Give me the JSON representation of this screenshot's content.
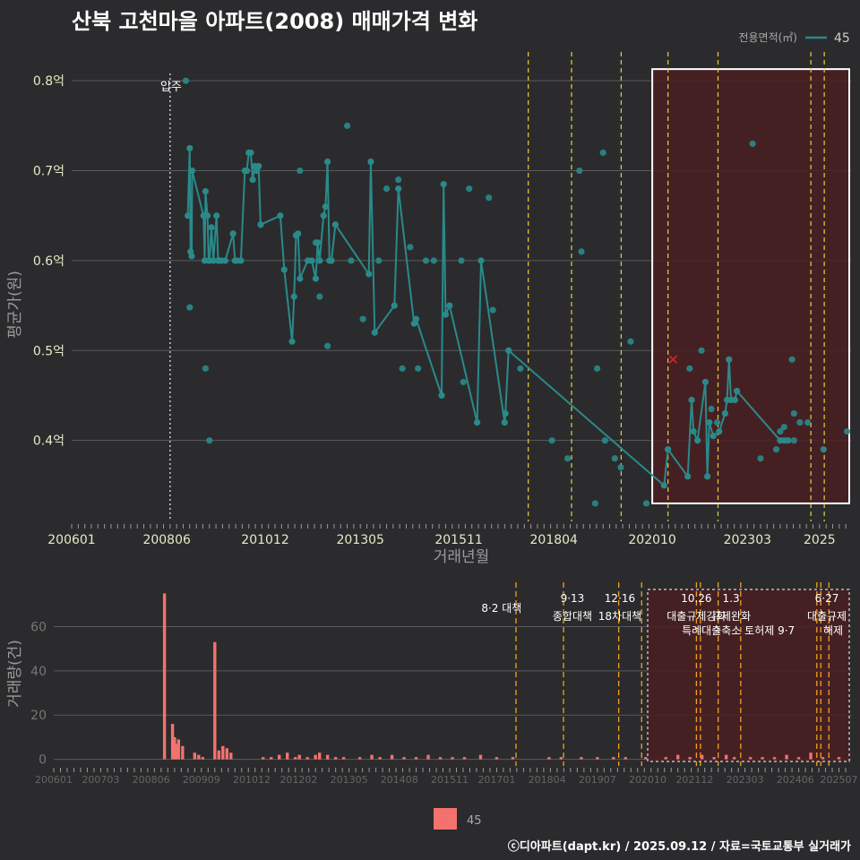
{
  "title": "산북 고천마을 아파트(2008) 매매가격 변화",
  "caption": "ⓒ디아파트(dapt.kr) / 2025.09.12 / 자료=국토교통부 실거래가",
  "colors": {
    "line": "#2a8a8a",
    "bar": "#f4726e",
    "policy": "#e6d23a",
    "policy_bottom": "#f2a11f",
    "highlight": "#4a1f22",
    "marker": "#d62728"
  },
  "chart_data": [
    {
      "type": "line",
      "xlabel": "거래년월",
      "ylabel": "평균가(원)",
      "legend": {
        "title": "전용면적(㎡)",
        "entries": [
          "45"
        ],
        "position": "top-right"
      },
      "x_ticks": [
        "200601",
        "200806",
        "201012",
        "201305",
        "201511",
        "201804",
        "202010",
        "202303",
        "2025"
      ],
      "x_range": [
        2006.0,
        2025.8
      ],
      "y_ticks": [
        "0.4억",
        "0.5억",
        "0.6억",
        "0.7억",
        "0.8억"
      ],
      "y_tick_values": [
        0.4,
        0.5,
        0.6,
        0.7,
        0.8
      ],
      "y_range": [
        0.31,
        0.85
      ],
      "move_in_label": "입주",
      "move_in_x": 2008.5,
      "policy_x": [
        2017.6,
        2018.7,
        2019.96,
        2021.15,
        2022.42,
        2024.78,
        2025.12
      ],
      "highlight_x": [
        2020.75,
        2025.8
      ],
      "series": [
        {
          "name": "45",
          "points": [
            [
              2008.95,
              0.65
            ],
            [
              2009.0,
              0.725
            ],
            [
              2009.02,
              0.61
            ],
            [
              2009.05,
              0.605
            ],
            [
              2009.06,
              0.7
            ],
            [
              2009.35,
              0.65
            ],
            [
              2009.38,
              0.6
            ],
            [
              2009.4,
              0.677
            ],
            [
              2009.45,
              0.65
            ],
            [
              2009.48,
              0.6
            ],
            [
              2009.5,
              0.6
            ],
            [
              2009.55,
              0.637
            ],
            [
              2009.6,
              0.6
            ],
            [
              2009.68,
              0.65
            ],
            [
              2009.72,
              0.6
            ],
            [
              2009.75,
              0.6
            ],
            [
              2009.8,
              0.6
            ],
            [
              2009.9,
              0.6
            ],
            [
              2010.1,
              0.63
            ],
            [
              2010.15,
              0.6
            ],
            [
              2010.2,
              0.6
            ],
            [
              2010.3,
              0.6
            ],
            [
              2010.4,
              0.7
            ],
            [
              2010.45,
              0.7
            ],
            [
              2010.5,
              0.72
            ],
            [
              2010.55,
              0.72
            ],
            [
              2010.6,
              0.69
            ],
            [
              2010.65,
              0.705
            ],
            [
              2010.7,
              0.7
            ],
            [
              2010.75,
              0.705
            ],
            [
              2010.8,
              0.64
            ],
            [
              2011.3,
              0.65
            ],
            [
              2011.4,
              0.59
            ],
            [
              2011.6,
              0.51
            ],
            [
              2011.65,
              0.56
            ],
            [
              2011.7,
              0.628
            ],
            [
              2011.75,
              0.63
            ],
            [
              2011.8,
              0.58
            ],
            [
              2012.0,
              0.6
            ],
            [
              2012.1,
              0.6
            ],
            [
              2012.2,
              0.58
            ],
            [
              2012.25,
              0.62
            ],
            [
              2012.3,
              0.6
            ],
            [
              2012.4,
              0.65
            ],
            [
              2012.45,
              0.66
            ],
            [
              2012.5,
              0.71
            ],
            [
              2012.55,
              0.6
            ],
            [
              2012.6,
              0.6
            ],
            [
              2012.7,
              0.64
            ],
            [
              2013.55,
              0.585
            ],
            [
              2013.6,
              0.71
            ],
            [
              2013.7,
              0.52
            ],
            [
              2014.2,
              0.55
            ],
            [
              2014.3,
              0.68
            ],
            [
              2014.7,
              0.53
            ],
            [
              2014.75,
              0.535
            ],
            [
              2015.4,
              0.45
            ],
            [
              2015.45,
              0.685
            ],
            [
              2015.5,
              0.54
            ],
            [
              2015.6,
              0.55
            ],
            [
              2016.3,
              0.42
            ],
            [
              2016.4,
              0.6
            ],
            [
              2017.0,
              0.42
            ],
            [
              2017.02,
              0.43
            ],
            [
              2017.1,
              0.5
            ],
            [
              2021.05,
              0.35
            ],
            [
              2021.15,
              0.39
            ],
            [
              2021.65,
              0.36
            ],
            [
              2021.75,
              0.445
            ],
            [
              2021.8,
              0.41
            ],
            [
              2021.9,
              0.4
            ],
            [
              2022.1,
              0.465
            ],
            [
              2022.15,
              0.36
            ],
            [
              2022.2,
              0.42
            ],
            [
              2022.3,
              0.405
            ],
            [
              2022.45,
              0.41
            ],
            [
              2022.6,
              0.43
            ],
            [
              2022.65,
              0.445
            ],
            [
              2022.7,
              0.49
            ],
            [
              2022.75,
              0.445
            ],
            [
              2022.85,
              0.445
            ],
            [
              2022.9,
              0.455
            ],
            [
              2024.0,
              0.4
            ],
            [
              2024.1,
              0.4
            ],
            [
              2024.2,
              0.4
            ]
          ]
        }
      ],
      "scatter_points": [
        [
          2008.9,
          0.8
        ],
        [
          2009.0,
          0.548
        ],
        [
          2009.4,
          0.48
        ],
        [
          2009.5,
          0.4
        ],
        [
          2011.8,
          0.7
        ],
        [
          2012.2,
          0.62
        ],
        [
          2012.3,
          0.56
        ],
        [
          2012.5,
          0.505
        ],
        [
          2013.0,
          0.75
        ],
        [
          2013.1,
          0.6
        ],
        [
          2013.4,
          0.535
        ],
        [
          2013.8,
          0.6
        ],
        [
          2014.0,
          0.68
        ],
        [
          2014.3,
          0.69
        ],
        [
          2014.4,
          0.48
        ],
        [
          2014.6,
          0.615
        ],
        [
          2014.8,
          0.48
        ],
        [
          2015.0,
          0.6
        ],
        [
          2015.2,
          0.6
        ],
        [
          2015.9,
          0.6
        ],
        [
          2015.95,
          0.465
        ],
        [
          2016.1,
          0.68
        ],
        [
          2016.6,
          0.67
        ],
        [
          2016.7,
          0.545
        ],
        [
          2017.4,
          0.48
        ],
        [
          2018.2,
          0.4
        ],
        [
          2018.6,
          0.38
        ],
        [
          2018.9,
          0.7
        ],
        [
          2018.95,
          0.61
        ],
        [
          2019.3,
          0.33
        ],
        [
          2019.35,
          0.48
        ],
        [
          2019.5,
          0.72
        ],
        [
          2019.55,
          0.4
        ],
        [
          2019.8,
          0.38
        ],
        [
          2019.95,
          0.37
        ],
        [
          2020.2,
          0.51
        ],
        [
          2020.6,
          0.33
        ],
        [
          2022.0,
          0.5
        ],
        [
          2021.7,
          0.48
        ],
        [
          2022.25,
          0.435
        ],
        [
          2022.4,
          0.42
        ],
        [
          2023.3,
          0.73
        ],
        [
          2023.5,
          0.38
        ],
        [
          2023.9,
          0.39
        ],
        [
          2024.0,
          0.41
        ],
        [
          2024.1,
          0.415
        ],
        [
          2024.3,
          0.49
        ],
        [
          2024.35,
          0.43
        ],
        [
          2024.5,
          0.42
        ],
        [
          2024.7,
          0.42
        ],
        [
          2025.1,
          0.39
        ],
        [
          2025.7,
          0.41
        ],
        [
          2024.35,
          0.4
        ]
      ],
      "cross_point": [
        2021.28,
        0.49
      ]
    },
    {
      "type": "bar",
      "xlabel": "",
      "ylabel": "거래량(건)",
      "legend": {
        "entries": [
          "45"
        ],
        "position": "bottom"
      },
      "x_ticks": [
        "200601",
        "200703",
        "200806",
        "200909",
        "201012",
        "201202",
        "201305",
        "201408",
        "201511",
        "201701",
        "201804",
        "201907",
        "202010",
        "202112",
        "202303",
        "202406",
        "202507"
      ],
      "x_range": [
        2006.0,
        2025.8
      ],
      "y_ticks": [
        "0",
        "20",
        "40",
        "60"
      ],
      "y_tick_values": [
        0,
        20,
        40,
        60
      ],
      "y_range": [
        -3,
        78
      ],
      "policy_x": [
        2017.48,
        2018.66,
        2020.03,
        2020.6,
        2021.96,
        2022.06,
        2022.5,
        2023.06,
        2024.95,
        2025.05,
        2025.25
      ],
      "highlight_x": [
        2020.75,
        2025.8
      ],
      "annotations": [
        {
          "x": 2017.12,
          "line1": "",
          "line2": "8·2 대책"
        },
        {
          "x": 2018.88,
          "line1": "9·13",
          "line2": "종합대책"
        },
        {
          "x": 2020.06,
          "line1": "12·16",
          "line2": "18차대책"
        },
        {
          "x": 2021.96,
          "line1": "10.26",
          "line2": "대출규제강화"
        },
        {
          "x": 2022.82,
          "line1": "1.3",
          "line2": "규제완화"
        },
        {
          "x": 2023.0,
          "line1": "",
          "line2": "특례대출축소 토허제 9·7"
        },
        {
          "x": 2025.2,
          "line1": "6·27",
          "line2": "대출규제"
        },
        {
          "x": 2025.2,
          "line1": "",
          "line2": "해제"
        }
      ],
      "bars": [
        [
          2008.75,
          75
        ],
        [
          2008.95,
          16
        ],
        [
          2009.0,
          10
        ],
        [
          2009.05,
          7
        ],
        [
          2009.1,
          9
        ],
        [
          2009.2,
          6
        ],
        [
          2009.5,
          3
        ],
        [
          2009.6,
          2
        ],
        [
          2009.7,
          1
        ],
        [
          2010.0,
          53
        ],
        [
          2010.1,
          4
        ],
        [
          2010.2,
          6
        ],
        [
          2010.3,
          5
        ],
        [
          2010.4,
          3
        ],
        [
          2011.2,
          1
        ],
        [
          2011.4,
          1
        ],
        [
          2011.6,
          2
        ],
        [
          2011.8,
          3
        ],
        [
          2012.0,
          1
        ],
        [
          2012.1,
          2
        ],
        [
          2012.3,
          1
        ],
        [
          2012.5,
          2
        ],
        [
          2012.6,
          3
        ],
        [
          2012.8,
          2
        ],
        [
          2013.0,
          1
        ],
        [
          2013.2,
          1
        ],
        [
          2013.6,
          1
        ],
        [
          2013.9,
          2
        ],
        [
          2014.1,
          1
        ],
        [
          2014.4,
          2
        ],
        [
          2014.7,
          1
        ],
        [
          2015.0,
          1
        ],
        [
          2015.3,
          2
        ],
        [
          2015.6,
          1
        ],
        [
          2015.9,
          1
        ],
        [
          2016.2,
          1
        ],
        [
          2016.6,
          2
        ],
        [
          2017.0,
          1
        ],
        [
          2017.4,
          1
        ],
        [
          2018.3,
          1
        ],
        [
          2018.6,
          1
        ],
        [
          2019.1,
          1
        ],
        [
          2019.5,
          1
        ],
        [
          2019.9,
          1
        ],
        [
          2020.2,
          1
        ],
        [
          2020.7,
          1
        ],
        [
          2021.2,
          1
        ],
        [
          2021.5,
          2
        ],
        [
          2021.8,
          1
        ],
        [
          2022.1,
          2
        ],
        [
          2022.4,
          1
        ],
        [
          2022.7,
          2
        ],
        [
          2022.9,
          1
        ],
        [
          2023.3,
          1
        ],
        [
          2023.6,
          1
        ],
        [
          2023.9,
          1
        ],
        [
          2024.2,
          2
        ],
        [
          2024.5,
          1
        ],
        [
          2024.8,
          3
        ],
        [
          2025.1,
          1
        ],
        [
          2025.5,
          1
        ]
      ]
    }
  ]
}
